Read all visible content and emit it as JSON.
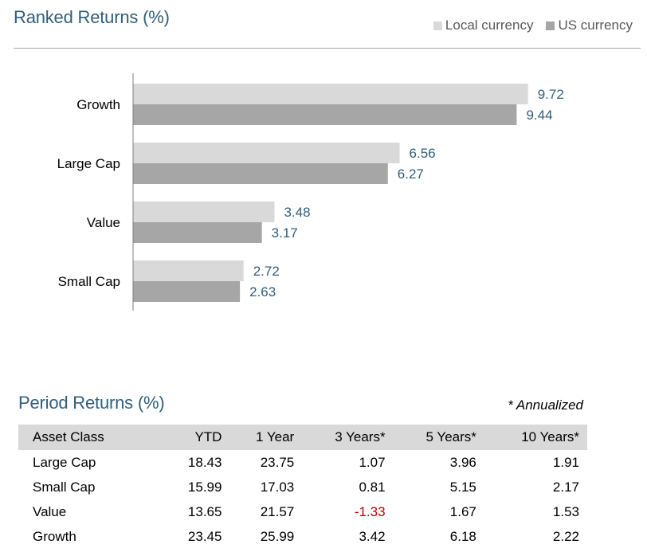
{
  "chart_data": {
    "type": "bar",
    "orientation": "horizontal",
    "title": "Ranked Returns (%)",
    "categories": [
      "Growth",
      "Large Cap",
      "Value",
      "Small Cap"
    ],
    "series": [
      {
        "name": "Local currency",
        "values": [
          9.72,
          6.56,
          3.48,
          2.72
        ],
        "color": "#d9d9d9"
      },
      {
        "name": "US currency",
        "values": [
          9.44,
          6.27,
          3.17,
          2.63
        ],
        "color": "#a6a6a6"
      }
    ],
    "xlim": [
      0,
      10
    ],
    "legend_position": "top-right",
    "grid": false,
    "label_color": "#2f5f7a"
  },
  "table": {
    "title": "Period Returns (%)",
    "note": "* Annualized",
    "columns": [
      "Asset Class",
      "YTD",
      "1 Year",
      "3 Years*",
      "5 Years*",
      "10 Years*"
    ],
    "rows": [
      [
        "Large Cap",
        "18.43",
        "23.75",
        "1.07",
        "3.96",
        "1.91"
      ],
      [
        "Small Cap",
        "15.99",
        "17.03",
        "0.81",
        "5.15",
        "2.17"
      ],
      [
        "Value",
        "13.65",
        "21.57",
        "-1.33",
        "1.67",
        "1.53"
      ],
      [
        "Growth",
        "23.45",
        "25.99",
        "3.42",
        "6.18",
        "2.22"
      ]
    ],
    "negative_color": "#c00000",
    "header_bg": "#d9d9d9"
  }
}
